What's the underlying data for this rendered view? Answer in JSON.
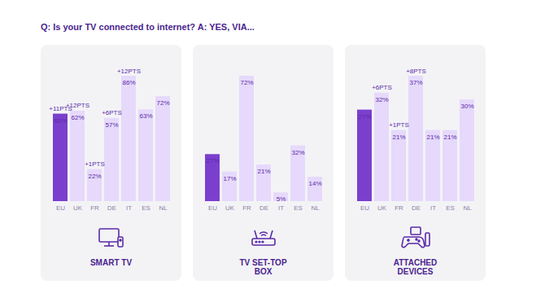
{
  "title": "Q: Is your TV connected to internet? A: YES, VIA...",
  "chart_data": [
    {
      "type": "bar",
      "title": "SMART TV",
      "categories": [
        "EU",
        "UK",
        "FR",
        "DE",
        "IT",
        "ES",
        "NL"
      ],
      "values": [
        60,
        62,
        22,
        57,
        86,
        63,
        72
      ],
      "value_labels": [
        "60%",
        "62%",
        "22%",
        "57%",
        "86%",
        "63%",
        "72%"
      ],
      "annotations": [
        "+11PTS",
        "+12PTS",
        "+1PTS",
        "+6PTS",
        "+12PTS",
        null,
        null
      ],
      "colors": [
        "#7b3fce",
        "#e6d9fb",
        "#e6d9fb",
        "#e6d9fb",
        "#e6d9fb",
        "#e6d9fb",
        "#e6d9fb"
      ],
      "data_labels": true,
      "tick_labels": "x",
      "grid": false
    },
    {
      "type": "bar",
      "title": "TV SET-TOP BOX",
      "categories": [
        "EU",
        "UK",
        "FR",
        "DE",
        "IT",
        "ES",
        "NL"
      ],
      "values": [
        27,
        17,
        72,
        21,
        5,
        32,
        14
      ],
      "value_labels": [
        "27%",
        "17%",
        "72%",
        "21%",
        "5%",
        "32%",
        "14%"
      ],
      "colors": [
        "#7b3fce",
        "#e6d9fb",
        "#e6d9fb",
        "#e6d9fb",
        "#e6d9fb",
        "#e6d9fb",
        "#e6d9fb"
      ],
      "data_labels": true,
      "tick_labels": "x",
      "grid": false
    },
    {
      "type": "bar",
      "title": "ATTACHED DEVICES",
      "categories": [
        "EU",
        "UK",
        "FR",
        "DE",
        "IT",
        "ES",
        "NL"
      ],
      "values": [
        27,
        32,
        21,
        37,
        21,
        21,
        30
      ],
      "value_labels": [
        "27%",
        "32%",
        "21%",
        "37%",
        "21%",
        "21%",
        "30%"
      ],
      "annotations": [
        null,
        "+6PTS",
        "+1PTS",
        "+8PTS",
        null,
        null,
        null
      ],
      "colors": [
        "#7b3fce",
        "#e6d9fb",
        "#e6d9fb",
        "#e6d9fb",
        "#e6d9fb",
        "#e6d9fb",
        "#e6d9fb"
      ],
      "data_labels": true,
      "tick_labels": "x",
      "grid": false
    }
  ]
}
